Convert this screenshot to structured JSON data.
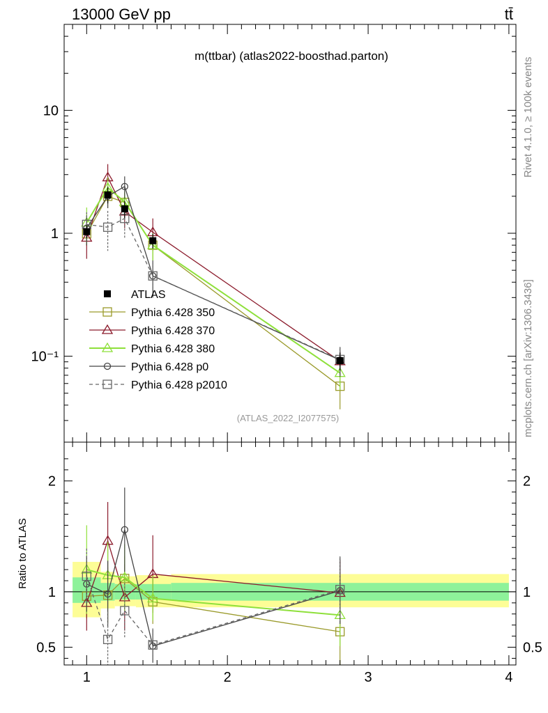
{
  "header": {
    "energy_label": "13000 GeV pp",
    "process_label": "tt̄",
    "plot_title": "m(ttbar) (atlas2022-boosthad.parton)",
    "side_text_top": "Rivet 4.1.0, ≥ 100k events",
    "side_text_bottom": "mcplots.cern.ch [arXiv:1306.3436]",
    "analysis_id": "(ATLAS_2022_I2077575)"
  },
  "colors": {
    "ATLAS": "#000000",
    "Pythia 6.428 350": "#9a9a2a",
    "Pythia 6.428 370": "#8b1a2b",
    "Pythia 6.428 380": "#8ee03a",
    "Pythia 6.428 p0": "#444444",
    "Pythia 6.428 p2010": "#666666",
    "band_stat": "#8ef29a",
    "band_total": "#fdfd96"
  },
  "chart_data": [
    {
      "type": "line",
      "panel": "main",
      "yscale": "log",
      "xlim": [
        0.84,
        4.05
      ],
      "ylim": [
        0.02,
        50
      ],
      "ytick_labels": [
        "10⁻¹",
        "1",
        "10"
      ],
      "ytick_values": [
        0.1,
        1,
        10
      ],
      "legend_position": "center-left",
      "x": [
        1.0,
        1.15,
        1.27,
        1.47,
        2.8
      ],
      "series": [
        {
          "name": "ATLAS",
          "marker": "filled-square",
          "values": [
            1.03,
            2.05,
            1.58,
            0.87,
            0.092
          ],
          "err": [
            0.12,
            0.3,
            0.25,
            0.12,
            0.015
          ]
        },
        {
          "name": "Pythia 6.428 350",
          "marker": "open-square",
          "dash": false,
          "values": [
            0.99,
            2.0,
            1.78,
            0.8,
            0.057
          ],
          "err": [
            0.2,
            0.4,
            0.35,
            0.2,
            0.02
          ]
        },
        {
          "name": "Pythia 6.428 370",
          "marker": "open-triangle",
          "dash": false,
          "values": [
            0.92,
            2.85,
            1.5,
            1.02,
            0.091
          ],
          "err": [
            0.3,
            0.8,
            0.4,
            0.3,
            0.02
          ]
        },
        {
          "name": "Pythia 6.428 380",
          "marker": "open-triangle",
          "dash": false,
          "values": [
            1.22,
            2.35,
            1.8,
            0.8,
            0.073
          ],
          "err": [
            0.4,
            0.5,
            0.4,
            0.2,
            0.02
          ]
        },
        {
          "name": "Pythia 6.428 p0",
          "marker": "open-circle",
          "dash": false,
          "values": [
            1.1,
            2.0,
            2.4,
            0.45,
            0.093
          ],
          "err": [
            0.3,
            0.4,
            0.5,
            0.15,
            0.025
          ]
        },
        {
          "name": "Pythia 6.428 p2010",
          "marker": "open-square",
          "dash": true,
          "values": [
            1.18,
            1.12,
            1.32,
            0.45,
            0.094
          ],
          "err": [
            0.3,
            0.4,
            0.4,
            0.15,
            0.025
          ]
        }
      ]
    },
    {
      "type": "line",
      "panel": "ratio",
      "ylabel": "Ratio to ATLAS",
      "xlim": [
        0.84,
        4.05
      ],
      "ylim": [
        0.34,
        2.35
      ],
      "ytick_labels": [
        "0.5",
        "1",
        "2"
      ],
      "ytick_values": [
        0.5,
        1,
        2
      ],
      "xtick_labels": [
        "1",
        "2",
        "3",
        "4"
      ],
      "xtick_values": [
        1,
        2,
        3,
        4
      ],
      "x": [
        1.0,
        1.15,
        1.27,
        1.47,
        2.8
      ],
      "bands": [
        {
          "xlo": 0.9,
          "xhi": 1.1,
          "stat": [
            0.9,
            1.13
          ],
          "total": [
            0.77,
            1.27
          ]
        },
        {
          "xlo": 1.1,
          "xhi": 1.2,
          "stat": [
            0.92,
            1.08
          ],
          "total": [
            0.85,
            1.18
          ]
        },
        {
          "xlo": 1.2,
          "xhi": 1.35,
          "stat": [
            0.93,
            1.07
          ],
          "total": [
            0.87,
            1.14
          ]
        },
        {
          "xlo": 1.35,
          "xhi": 1.6,
          "stat": [
            0.93,
            1.07
          ],
          "total": [
            0.86,
            1.15
          ]
        },
        {
          "xlo": 1.6,
          "xhi": 4.0,
          "stat": [
            0.92,
            1.08
          ],
          "total": [
            0.86,
            1.16
          ]
        }
      ],
      "series": [
        {
          "name": "Pythia 6.428 350",
          "values": [
            0.96,
            0.97,
            1.12,
            0.91,
            0.64
          ],
          "err": [
            0.2,
            0.25,
            0.2,
            0.2,
            0.3
          ]
        },
        {
          "name": "Pythia 6.428 370",
          "values": [
            0.9,
            1.46,
            0.95,
            1.16,
            0.99
          ],
          "err": [
            0.25,
            0.35,
            0.3,
            0.35,
            0.3
          ]
        },
        {
          "name": "Pythia 6.428 380",
          "values": [
            1.2,
            1.15,
            1.13,
            0.94,
            0.79
          ],
          "err": [
            0.4,
            0.3,
            0.3,
            0.2,
            0.28
          ]
        },
        {
          "name": "Pythia 6.428 p0",
          "values": [
            1.07,
            0.98,
            1.56,
            0.51,
            1.01
          ],
          "err": [
            0.25,
            0.3,
            0.38,
            0.15,
            0.3
          ]
        },
        {
          "name": "Pythia 6.428 p2010",
          "values": [
            1.14,
            0.57,
            0.83,
            0.52,
            1.02
          ],
          "err": [
            0.25,
            0.25,
            0.25,
            0.15,
            0.3
          ]
        }
      ]
    }
  ]
}
